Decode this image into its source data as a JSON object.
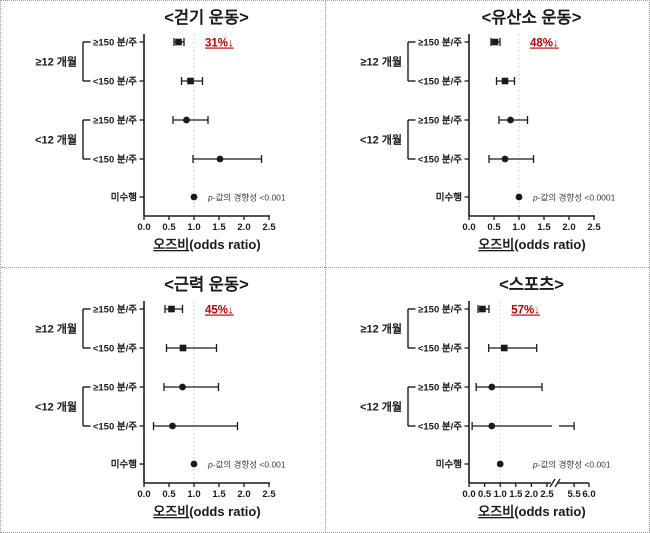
{
  "figure": {
    "background": "#ffffff",
    "border_color": "#9a9a9a",
    "axis_color": "#1a1a1a",
    "accent_red": "#c00000",
    "refline_color": "#c9c9c9",
    "ptext_color": "#3c3c3c"
  },
  "chart_data": [
    {
      "type": "scatter",
      "subtype": "forest-plot",
      "title": "<걷기 운동>",
      "xlabel": "오즈비(odds ratio)",
      "xticks": [
        0.0,
        0.5,
        1.0,
        1.5,
        2.0,
        2.5
      ],
      "xlim": [
        0.0,
        2.5
      ],
      "reference_line": 1.0,
      "grid": false,
      "legend": null,
      "annotation": "31%↓",
      "p_trend": "p-값의 경향성 <0.001",
      "groups": [
        {
          "label": "≥12 개월",
          "rows": [
            0,
            1
          ]
        },
        {
          "label": "<12 개월",
          "rows": [
            2,
            3
          ]
        }
      ],
      "rows": [
        {
          "label": "≥150 분/주",
          "or": 0.69,
          "ci": [
            0.6,
            0.8
          ],
          "marker": "square"
        },
        {
          "label": "<150 분/주",
          "or": 0.93,
          "ci": [
            0.75,
            1.17
          ],
          "marker": "square"
        },
        {
          "label": "≥150 분/주",
          "or": 0.85,
          "ci": [
            0.58,
            1.28
          ],
          "marker": "circle"
        },
        {
          "label": "<150 분/주",
          "or": 1.52,
          "ci": [
            0.98,
            2.35
          ],
          "marker": "circle"
        },
        {
          "label": "미수행",
          "or": 1.0,
          "ci": null,
          "marker": "circle"
        }
      ]
    },
    {
      "type": "scatter",
      "subtype": "forest-plot",
      "title": "<유산소 운동>",
      "xlabel": "오즈비(odds ratio)",
      "xticks": [
        0.0,
        0.5,
        1.0,
        1.5,
        2.0,
        2.5
      ],
      "xlim": [
        0.0,
        2.5
      ],
      "reference_line": 1.0,
      "grid": false,
      "legend": null,
      "annotation": "48%↓",
      "p_trend": "p-값의 경향성 <0.0001",
      "groups": [
        {
          "label": "≥12 개월",
          "rows": [
            0,
            1
          ]
        },
        {
          "label": "<12 개월",
          "rows": [
            2,
            3
          ]
        }
      ],
      "rows": [
        {
          "label": "≥150 분/주",
          "or": 0.52,
          "ci": [
            0.44,
            0.62
          ],
          "marker": "square"
        },
        {
          "label": "<150 분/주",
          "or": 0.72,
          "ci": [
            0.55,
            0.91
          ],
          "marker": "square"
        },
        {
          "label": "≥150 분/주",
          "or": 0.83,
          "ci": [
            0.6,
            1.17
          ],
          "marker": "circle"
        },
        {
          "label": "<150 분/주",
          "or": 0.72,
          "ci": [
            0.4,
            1.29
          ],
          "marker": "circle"
        },
        {
          "label": "미수행",
          "or": 1.0,
          "ci": null,
          "marker": "circle"
        }
      ]
    },
    {
      "type": "scatter",
      "subtype": "forest-plot",
      "title": "<근력 운동>",
      "xlabel": "오즈비(odds ratio)",
      "xticks": [
        0.0,
        0.5,
        1.0,
        1.5,
        2.0,
        2.5
      ],
      "xlim": [
        0.0,
        2.5
      ],
      "reference_line": 1.0,
      "grid": false,
      "legend": null,
      "annotation": "45%↓",
      "p_trend": "p-값의 경향성 <0.001",
      "groups": [
        {
          "label": "≥12 개월",
          "rows": [
            0,
            1
          ]
        },
        {
          "label": "<12 개월",
          "rows": [
            2,
            3
          ]
        }
      ],
      "rows": [
        {
          "label": "≥150 분/주",
          "or": 0.55,
          "ci": [
            0.42,
            0.77
          ],
          "marker": "square"
        },
        {
          "label": "<150 분/주",
          "or": 0.78,
          "ci": [
            0.45,
            1.45
          ],
          "marker": "square"
        },
        {
          "label": "≥150 분/주",
          "or": 0.77,
          "ci": [
            0.4,
            1.49
          ],
          "marker": "circle"
        },
        {
          "label": "<150 분/주",
          "or": 0.57,
          "ci": [
            0.19,
            1.87
          ],
          "marker": "circle"
        },
        {
          "label": "미수행",
          "or": 1.0,
          "ci": null,
          "marker": "circle"
        }
      ]
    },
    {
      "type": "scatter",
      "subtype": "forest-plot",
      "title": "<스포츠>",
      "xlabel": "오즈비(odds ratio)",
      "xticks": [
        0.0,
        0.5,
        1.0,
        1.5,
        2.0,
        2.5,
        5.5,
        6.0
      ],
      "xlim": [
        0.0,
        6.0
      ],
      "axis_break": {
        "from": 2.5,
        "to": 5.0
      },
      "reference_line": 1.0,
      "grid": false,
      "legend": null,
      "annotation": "57%↓",
      "p_trend": "p-값의 경향성 <0.001",
      "groups": [
        {
          "label": "≥12 개월",
          "rows": [
            0,
            1
          ]
        },
        {
          "label": "<12 개월",
          "rows": [
            2,
            3
          ]
        }
      ],
      "rows": [
        {
          "label": "≥150 분/주",
          "or": 0.43,
          "ci": [
            0.29,
            0.64
          ],
          "marker": "square"
        },
        {
          "label": "<150 분/주",
          "or": 1.13,
          "ci": [
            0.63,
            2.17
          ],
          "marker": "square"
        },
        {
          "label": "≥150 분/주",
          "or": 0.73,
          "ci": [
            0.23,
            2.34
          ],
          "marker": "circle"
        },
        {
          "label": "<150 분/주",
          "or": 0.73,
          "ci": [
            0.1,
            5.5
          ],
          "marker": "circle"
        },
        {
          "label": "미수행",
          "or": 1.0,
          "ci": null,
          "marker": "circle"
        }
      ]
    }
  ]
}
